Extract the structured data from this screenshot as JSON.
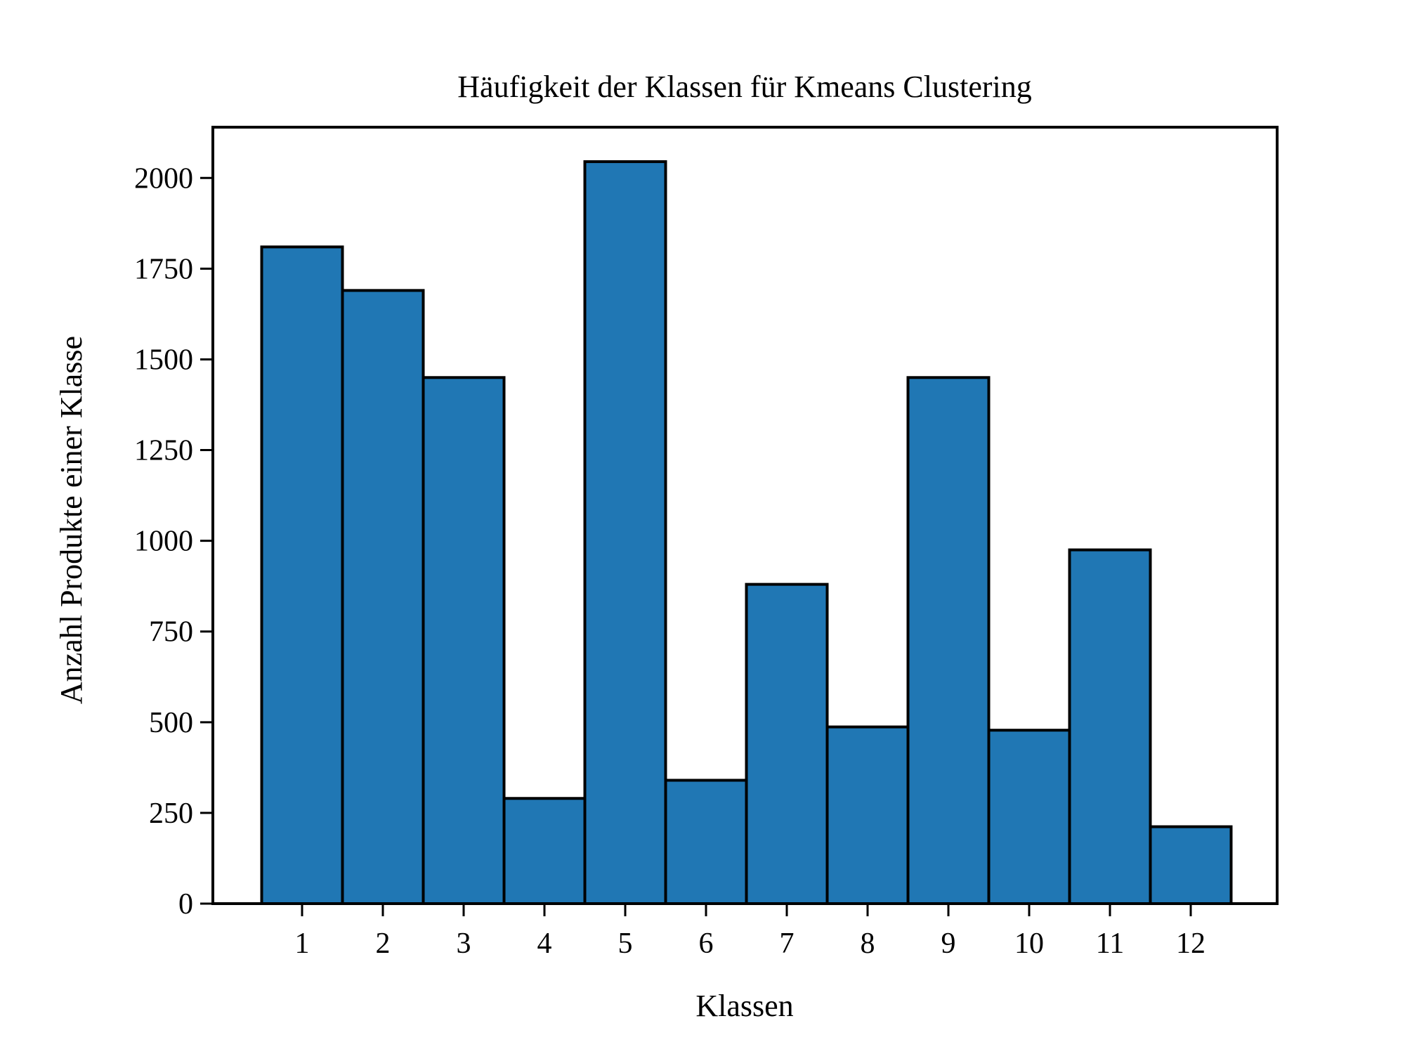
{
  "chart_data": {
    "type": "bar",
    "title": "Häufigkeit der Klassen für Kmeans Clustering",
    "xlabel": "Klassen",
    "ylabel": "Anzahl Produkte einer Klasse",
    "categories": [
      "1",
      "2",
      "3",
      "4",
      "5",
      "6",
      "7",
      "8",
      "9",
      "10",
      "11",
      "12"
    ],
    "values": [
      1810,
      1690,
      1450,
      290,
      2045,
      340,
      880,
      487,
      1450,
      478,
      975,
      212
    ],
    "ylim": [
      0,
      2140
    ],
    "yticks": [
      0,
      250,
      500,
      750,
      1000,
      1250,
      1500,
      1750,
      2000
    ],
    "ytick_labels": [
      "0",
      "250",
      "500",
      "750",
      "1000",
      "1250",
      "1500",
      "1750",
      "2000"
    ],
    "grid": false,
    "legend": "none",
    "colors": {
      "bar_fill": "#2077b4",
      "bar_edge": "#000000"
    }
  }
}
